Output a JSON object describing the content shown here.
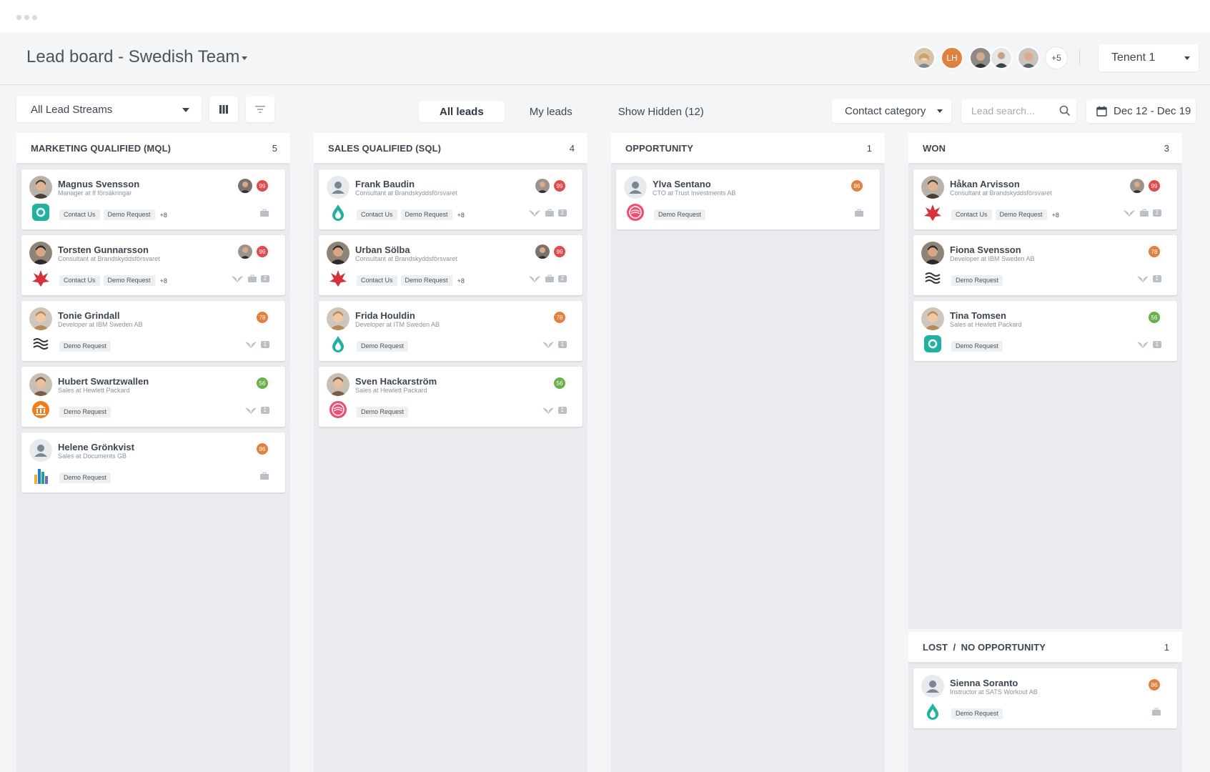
{
  "header": {
    "title": "Lead board - Swedish Team",
    "team_initials": "LH",
    "team_more": "+5",
    "tenant": "Tenent 1"
  },
  "toolbar": {
    "stream_select": "All Lead Streams",
    "tabs": [
      {
        "label": "All leads",
        "active": true
      },
      {
        "label": "My leads",
        "active": false
      },
      {
        "label": "Show Hidden (12)",
        "active": false
      }
    ],
    "category_select": "Contact category",
    "search_placeholder": "Lead search...",
    "date_range": "Dec 12 - Dec 19"
  },
  "colors": {
    "score_red": "#e04b4b",
    "score_orange": "#e08140",
    "score_green": "#6ab04c",
    "teal": "#20b2a0"
  },
  "columns": [
    {
      "title": "MARKETING QUALIFIED (MQL)",
      "count": "5",
      "cards": [
        {
          "name": "Magnus Svensson",
          "role": "Manager at If försäkringar",
          "score": "99",
          "tags": [
            "Contact Us",
            "Demo Request"
          ],
          "more": "+8",
          "logo": "teal-swirl-logo",
          "num": ""
        },
        {
          "name": "Torsten Gunnarsson",
          "role": "Consultant at Brandskyddsförsvaret",
          "score": "99",
          "tags": [
            "Contact Us",
            "Demo Request"
          ],
          "more": "+8",
          "logo": "red-flame-logo",
          "num": "2"
        },
        {
          "name": "Tonie Grindall",
          "role": "Developer at IBM Sweden AB",
          "score": "78",
          "tags": [
            "Demo Request"
          ],
          "more": "",
          "logo": "wave-lines-logo",
          "num": "1"
        },
        {
          "name": "Hubert Swartzwallen",
          "role": "Sales at Hewlett Packard",
          "score": "56",
          "tags": [
            "Demo Request"
          ],
          "more": "",
          "logo": "orange-bank-logo",
          "num": "1"
        },
        {
          "name": "Helene Grönkvist",
          "role": "Sales at Documents GB",
          "score": "86",
          "tags": [
            "Demo Request"
          ],
          "more": "",
          "logo": "bars-logo",
          "num": ""
        }
      ]
    },
    {
      "title": "SALES QUALIFIED (SQL)",
      "count": "4",
      "cards": [
        {
          "name": "Frank Baudin",
          "role": "Consultant at Brandskyddsförsvaret",
          "score": "99",
          "tags": [
            "Contact Us",
            "Demo Request"
          ],
          "more": "+8",
          "logo": "teal-drop-logo",
          "num": "2"
        },
        {
          "name": "Urban Sölba",
          "role": "Consultant at Brandskyddsförsvaret",
          "score": "99",
          "tags": [
            "Contact Us",
            "Demo Request"
          ],
          "more": "+8",
          "logo": "red-flame-logo",
          "num": "2"
        },
        {
          "name": "Frida Houldin",
          "role": "Developer at ITM Sweden AB",
          "score": "78",
          "tags": [
            "Demo Request"
          ],
          "more": "",
          "logo": "teal-drop-logo",
          "num": "1"
        },
        {
          "name": "Sven Hackarström",
          "role": "Sales at Hewlett Packard",
          "score": "56",
          "tags": [
            "Demo Request"
          ],
          "more": "",
          "logo": "pink-circle-logo",
          "num": "1"
        }
      ]
    },
    {
      "title": "OPPORTUNITY",
      "count": "1",
      "cards": [
        {
          "name": "Ylva Sentano",
          "role": "CTO at Trust Investments AB",
          "score": "86",
          "tags": [
            "Demo Request"
          ],
          "more": "",
          "logo": "pink-circle-logo",
          "num": ""
        }
      ]
    },
    {
      "title": "WON",
      "count": "3",
      "cards": [
        {
          "name": "Håkan Arvisson",
          "role": "Consultant at Brandskyddsförsvaret",
          "score": "99",
          "tags": [
            "Contact Us",
            "Demo Request"
          ],
          "more": "+8",
          "logo": "red-flame-logo",
          "num": "2"
        },
        {
          "name": "Fiona Svensson",
          "role": "Developer at IBM Sweden AB",
          "score": "78",
          "tags": [
            "Demo Request"
          ],
          "more": "",
          "logo": "wave-lines-logo",
          "num": "1"
        },
        {
          "name": "Tina Tomsen",
          "role": "Sales at Hewlett Packard",
          "score": "56",
          "tags": [
            "Demo Request"
          ],
          "more": "",
          "logo": "teal-swirl-logo",
          "num": "1"
        }
      ]
    }
  ],
  "lost": {
    "title": "LOST  /  NO OPPORTUNITY",
    "count": "1",
    "cards": [
      {
        "name": "Sienna Soranto",
        "role": "Instructor at SATS Workout AB",
        "score": "86",
        "tags": [
          "Demo Request"
        ],
        "more": "",
        "logo": "teal-drop-logo",
        "num": ""
      }
    ]
  }
}
